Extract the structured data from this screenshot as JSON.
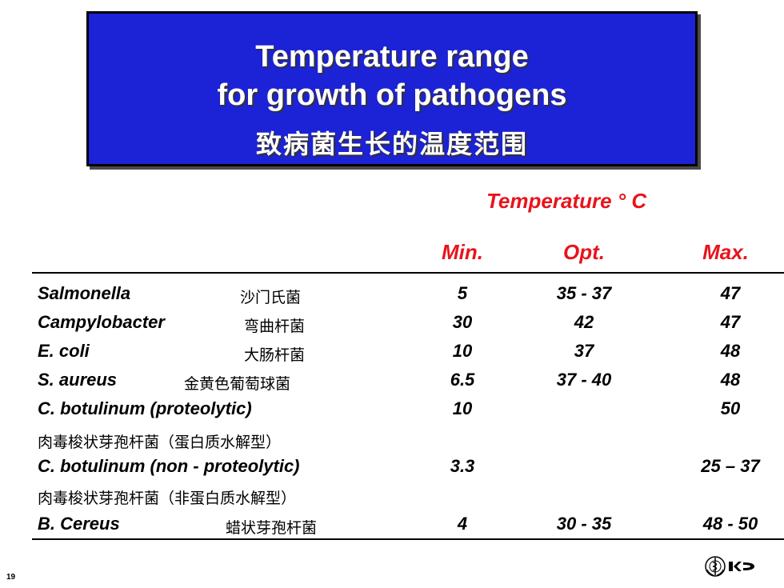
{
  "title": {
    "line1": "Temperature range",
    "line2": "for growth of pathogens",
    "line3": "致病菌生长的温度范围"
  },
  "table": {
    "group_header": "Temperature ° C",
    "columns": [
      "Min.",
      "Opt.",
      "Max."
    ],
    "rows": [
      {
        "name": "Salmonella",
        "cn": "沙门氏菌",
        "min": "5",
        "opt": "35 - 37",
        "max": "47"
      },
      {
        "name": "Campylobacter",
        "cn": "弯曲杆菌",
        "min": "30",
        "opt": "42",
        "max": "47"
      },
      {
        "name": "E. coli",
        "cn": "大肠杆菌",
        "min": "10",
        "opt": "37",
        "max": "48"
      },
      {
        "name": "S. aureus",
        "cn": "金黄色葡萄球菌",
        "min": "6.5",
        "opt": "37 - 40",
        "max": "48"
      },
      {
        "name": "C. botulinum (proteolytic)",
        "cn": "肉毒梭状芽孢杆菌（蛋白质水解型）",
        "min": "10",
        "opt": "",
        "max": "50"
      },
      {
        "name": "C. botulinum (non - proteolytic)",
        "cn": "肉毒梭状芽孢杆菌（非蛋白质水解型）",
        "min": "3.3",
        "opt": "",
        "max": "25 – 37"
      },
      {
        "name": "B. Cereus",
        "cn": "蜡状芽孢杆菌",
        "min": "4",
        "opt": "30 - 35",
        "max": "48 - 50"
      }
    ]
  },
  "footer": {
    "page_number": "19",
    "logos": [
      "who-emblem-icon",
      "logo-icon"
    ]
  }
}
